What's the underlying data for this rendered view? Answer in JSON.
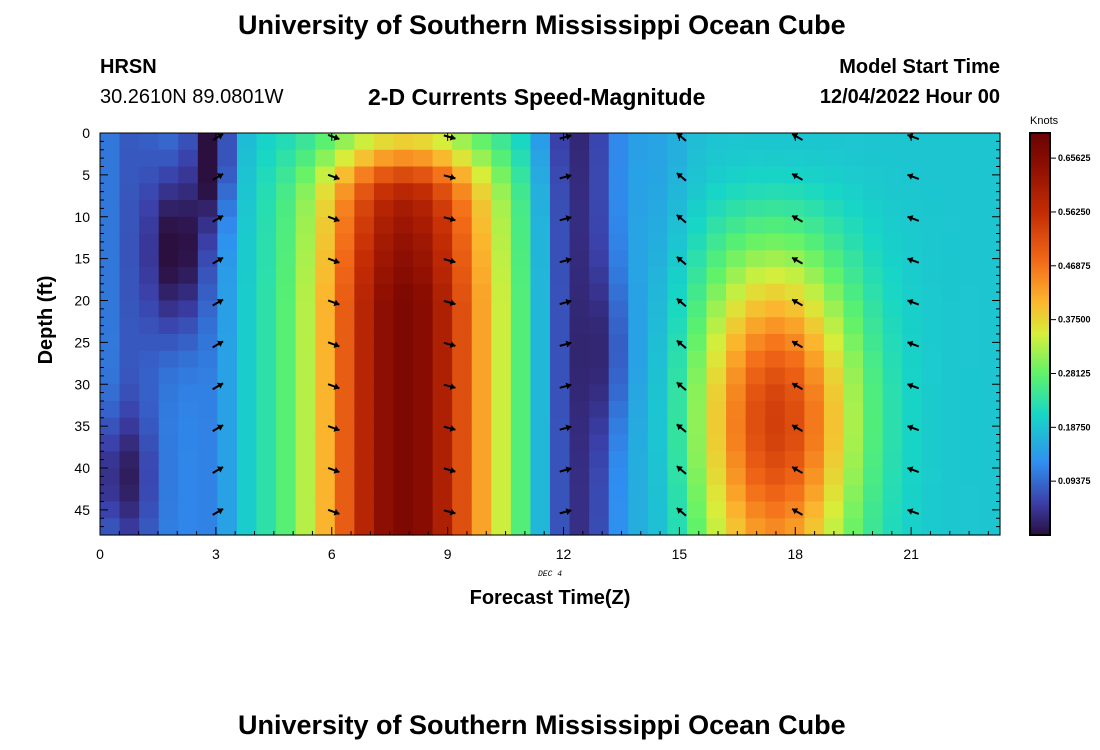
{
  "header": {
    "title": "University of Southern Mississippi Ocean Cube",
    "station": "HRSN",
    "coords": "30.2610N  89.0801W",
    "subtitle": "2-D Currents Speed-Magnitude",
    "model_label": "Model Start Time",
    "model_time": "12/04/2022 Hour 00"
  },
  "footer": {
    "title": "University of Southern Mississippi Ocean Cube"
  },
  "colors": {
    "background": "#ffffff",
    "arrow": "#000000"
  },
  "chart_data": {
    "type": "heatmap",
    "xlabel": "Forecast Time(Z)",
    "ylabel": "Depth (ft)",
    "date_label": "DEC 4",
    "xlim": [
      0,
      23.3
    ],
    "ylim": [
      0,
      48
    ],
    "x_ticks": [
      0,
      3,
      6,
      9,
      12,
      15,
      18,
      21
    ],
    "y_ticks": [
      0,
      5,
      10,
      15,
      20,
      25,
      30,
      35,
      40,
      45
    ],
    "colorbar": {
      "label": "Knots",
      "min": 0,
      "max": 0.7,
      "ticks": [
        "0.09375",
        "0.18750",
        "0.28125",
        "0.37500",
        "0.46875",
        "0.56250",
        "0.65625"
      ],
      "tick_values": [
        0.09375,
        0.1875,
        0.28125,
        0.375,
        0.46875,
        0.5625,
        0.65625
      ]
    },
    "arrow_times": [
      3,
      6,
      9,
      12,
      15,
      18,
      21
    ],
    "arrow_depths": [
      0,
      5,
      10,
      15,
      20,
      25,
      30,
      35,
      40,
      45
    ],
    "arrow_directions_deg": [
      -30,
      20,
      15,
      -15,
      -140,
      -150,
      -160
    ]
  }
}
